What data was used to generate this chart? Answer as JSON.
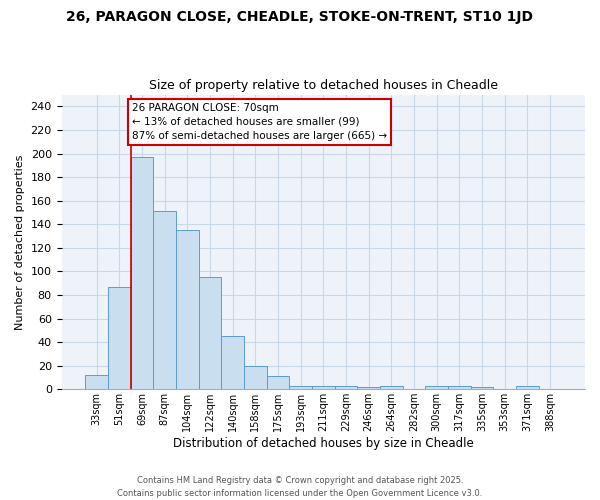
{
  "title1": "26, PARAGON CLOSE, CHEADLE, STOKE-ON-TRENT, ST10 1JD",
  "title2": "Size of property relative to detached houses in Cheadle",
  "xlabel": "Distribution of detached houses by size in Cheadle",
  "ylabel": "Number of detached properties",
  "categories": [
    "33sqm",
    "51sqm",
    "69sqm",
    "87sqm",
    "104sqm",
    "122sqm",
    "140sqm",
    "158sqm",
    "175sqm",
    "193sqm",
    "211sqm",
    "229sqm",
    "246sqm",
    "264sqm",
    "282sqm",
    "300sqm",
    "317sqm",
    "335sqm",
    "353sqm",
    "371sqm",
    "388sqm"
  ],
  "values": [
    12,
    87,
    197,
    151,
    135,
    95,
    45,
    20,
    11,
    3,
    3,
    3,
    2,
    3,
    0,
    3,
    3,
    2,
    0,
    3,
    0
  ],
  "bar_color": "#c9dff0",
  "bar_edge_color": "#5b9bd5",
  "vline_color": "#cc0000",
  "annotation_line1": "26 PARAGON CLOSE: 70sqm",
  "annotation_line2": "← 13% of detached houses are smaller (99)",
  "annotation_line3": "87% of semi-detached houses are larger (665) →",
  "annotation_box_color": "#cc0000",
  "ylim": [
    0,
    250
  ],
  "yticks": [
    0,
    20,
    40,
    60,
    80,
    100,
    120,
    140,
    160,
    180,
    200,
    220,
    240
  ],
  "grid_color": "#c8d8e8",
  "background_color": "#eef3f9",
  "title1_fontsize": 10,
  "title2_fontsize": 9,
  "footer1": "Contains HM Land Registry data © Crown copyright and database right 2025.",
  "footer2": "Contains public sector information licensed under the Open Government Licence v3.0."
}
